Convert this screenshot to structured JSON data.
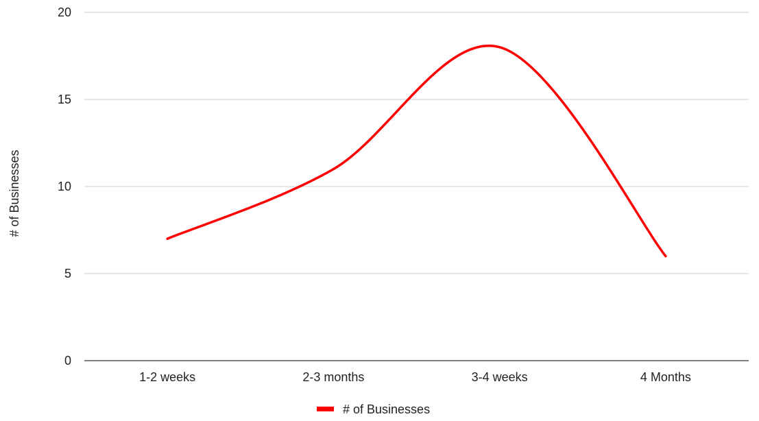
{
  "chart_data": {
    "type": "line",
    "title": "",
    "xlabel": "",
    "ylabel": "# of Businesses",
    "categories": [
      "1-2 weeks",
      "2-3 months",
      "3-4 weeks",
      "4 Months"
    ],
    "series": [
      {
        "name": "# of Businesses",
        "values": [
          7,
          11,
          18,
          6
        ],
        "color": "#ff0000"
      }
    ],
    "ylim": [
      0,
      20
    ],
    "yticks": [
      0,
      5,
      10,
      15,
      20
    ],
    "grid": true,
    "smooth": true,
    "legend": {
      "position": "bottom"
    }
  }
}
